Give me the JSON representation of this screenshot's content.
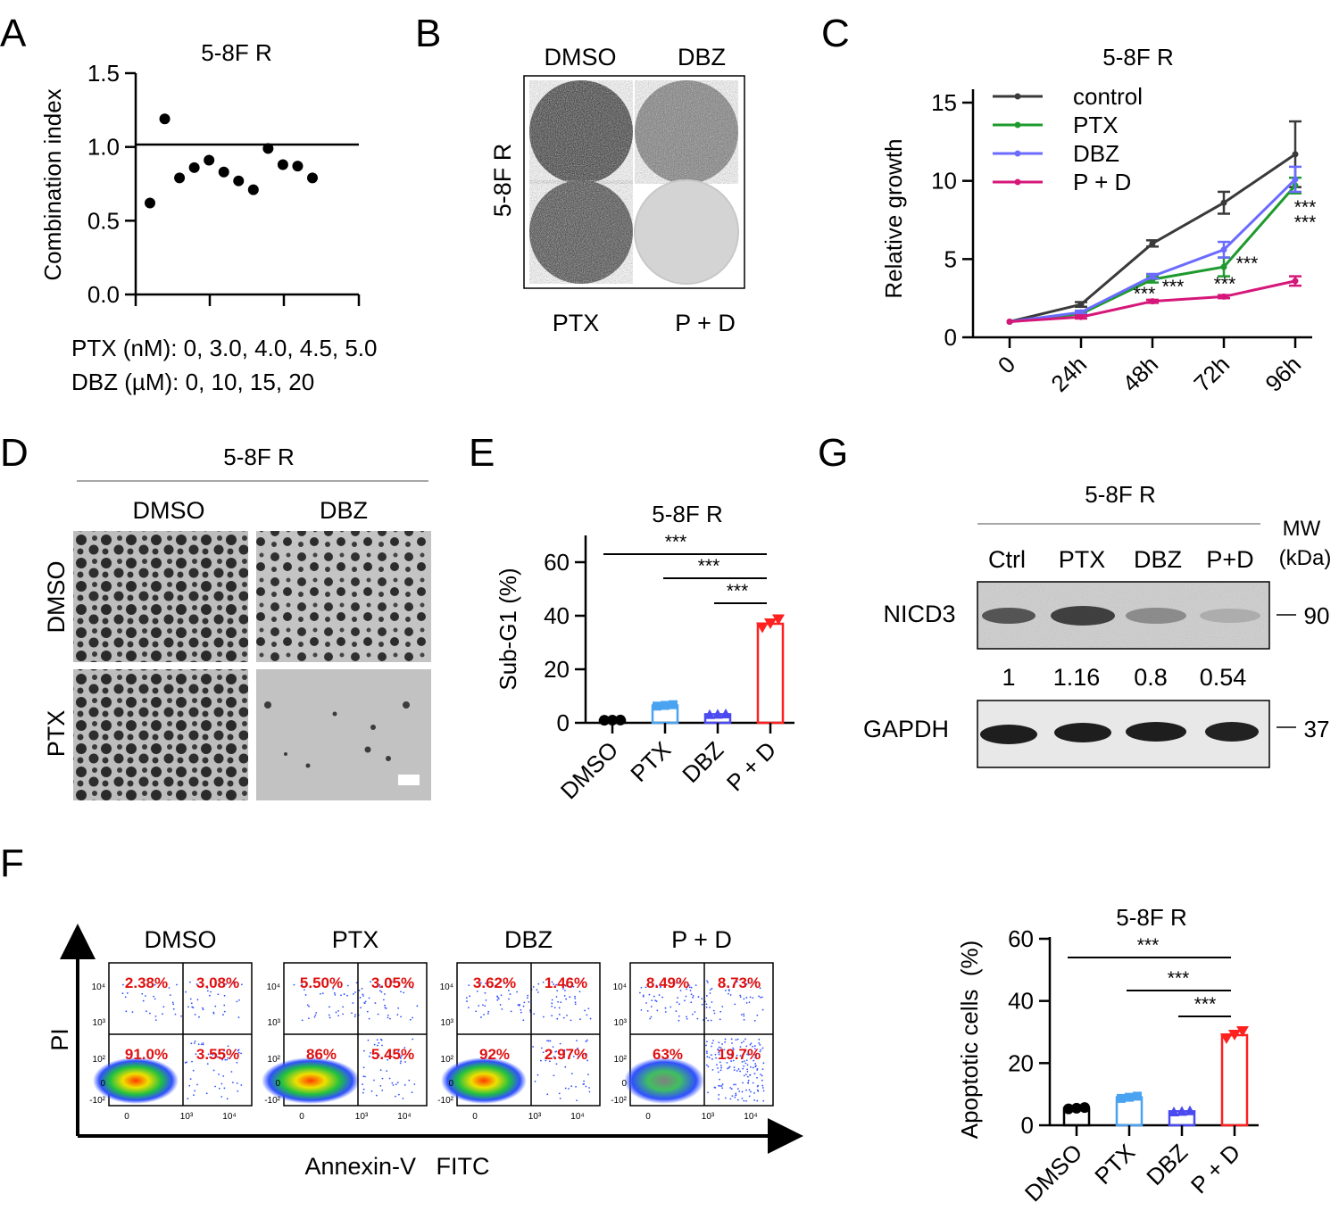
{
  "panels": {
    "a": {
      "letter": "A",
      "title": "5-8F R",
      "ylabel": "Combination index",
      "note_ptx": "PTX (nM): 0, 3.0, 4.0, 4.5, 5.0",
      "note_dbz": "DBZ (µM): 0, 10, 15, 20"
    },
    "b": {
      "letter": "B",
      "col1": "DMSO",
      "col2": "DBZ",
      "row_label": "5-8F R",
      "bottom1": "PTX",
      "bottom2": "P + D"
    },
    "c": {
      "letter": "C",
      "title": "5-8F R",
      "ylabel": "Relative growth"
    },
    "d": {
      "letter": "D",
      "title": "5-8F R",
      "col1": "DMSO",
      "col2": "DBZ",
      "row1": "DMSO",
      "row2": "PTX"
    },
    "e": {
      "letter": "E",
      "title": "5-8F R",
      "ylabel": "Sub-G1 (%)"
    },
    "f": {
      "letter": "F",
      "xaxis": "Annexin-V   FITC",
      "yaxis": "PI",
      "plots": [
        {
          "title": "DMSO",
          "q": [
            "2.38%",
            "3.08%",
            "91.0%",
            "3.55%"
          ]
        },
        {
          "title": "PTX",
          "q": [
            "5.50%",
            "3.05%",
            "86%",
            "5.45%"
          ]
        },
        {
          "title": "DBZ",
          "q": [
            "3.62%",
            "1.46%",
            "92%",
            "2.97%"
          ]
        },
        {
          "title": "P + D",
          "q": [
            "8.49%",
            "8.73%",
            "63%",
            "19.7%"
          ]
        }
      ],
      "axis_ticks": {
        "y": [
          "10⁴",
          "10³",
          "10²",
          "0",
          "-10²"
        ],
        "x": [
          "0",
          "10³",
          "10⁴"
        ]
      },
      "bar_title": "5-8F R",
      "bar_ylabel": "Apoptotic cells  (%)"
    },
    "g": {
      "letter": "G",
      "title": "5-8F R",
      "mw_label": "MW",
      "kda_label": "(kDa)",
      "lanes": [
        "Ctrl",
        "PTX",
        "DBZ",
        "P+D"
      ],
      "band1": "NICD3",
      "band2": "GAPDH",
      "mw1": "90",
      "mw2": "37",
      "quant": [
        "1",
        "1.16",
        "0.8",
        "0.54"
      ]
    }
  },
  "colors": {
    "control": "#3a3a3a",
    "ptx": "#1e9a2e",
    "dbz": "#6b6bff",
    "pd": "#d6177a",
    "bar_dmso": "#000000",
    "bar_ptx": "#4aa3f0",
    "bar_dbz": "#4a4af0",
    "bar_pd": "#ff2020",
    "quant_text": "#e01010"
  },
  "chart_data": [
    {
      "id": "A",
      "type": "scatter",
      "title": "5-8F R",
      "ylabel": "Combination index",
      "xlabel": "",
      "ylim": [
        0,
        1.5
      ],
      "yticks": [
        "0.0",
        "0.5",
        "1.0",
        "1.5"
      ],
      "reference_line": 1.0,
      "values": [
        0.62,
        1.19,
        0.79,
        0.86,
        0.91,
        0.83,
        0.77,
        0.71,
        0.99,
        0.88,
        0.87,
        0.79
      ]
    },
    {
      "id": "C",
      "type": "line",
      "title": "5-8F R",
      "ylabel": "Relative growth",
      "xlabel": "",
      "categories": [
        "0",
        "24h",
        "48h",
        "72h",
        "96h"
      ],
      "ylim": [
        0,
        15
      ],
      "yticks": [
        "0",
        "5",
        "10",
        "15"
      ],
      "series": [
        {
          "name": "control",
          "values": [
            1.0,
            2.1,
            6.0,
            8.6,
            11.7
          ],
          "err": [
            0,
            0.15,
            0.2,
            0.7,
            2.1
          ]
        },
        {
          "name": "PTX",
          "values": [
            1.0,
            1.5,
            3.7,
            4.5,
            9.7
          ],
          "err": [
            0,
            0.1,
            0.2,
            0.6,
            0.5
          ]
        },
        {
          "name": "DBZ",
          "values": [
            1.0,
            1.6,
            3.9,
            5.6,
            10.1
          ],
          "err": [
            0,
            0.1,
            0.15,
            0.5,
            0.8
          ]
        },
        {
          "name": "P + D",
          "values": [
            1.0,
            1.3,
            2.3,
            2.6,
            3.6
          ],
          "err": [
            0,
            0.1,
            0.1,
            0.1,
            0.3
          ]
        }
      ],
      "annotations": [
        "***",
        "***",
        "***",
        "***",
        "***",
        "***"
      ]
    },
    {
      "id": "E",
      "type": "bar",
      "title": "5-8F R",
      "ylabel": "Sub-G1 (%)",
      "xlabel": "",
      "categories": [
        "DMSO",
        "PTX",
        "DBZ",
        "P + D"
      ],
      "values": [
        1.0,
        6.5,
        3.2,
        37
      ],
      "ylim": [
        0,
        70
      ],
      "yticks": [
        "0",
        "20",
        "40",
        "60"
      ],
      "points": [
        [
          1,
          1,
          1
        ],
        [
          6,
          7,
          6.5
        ],
        [
          3,
          3.5,
          3
        ]
      ],
      "points_pd": [
        39,
        36,
        37
      ],
      "significance": [
        "***",
        "***",
        "***"
      ]
    },
    {
      "id": "F",
      "type": "bar",
      "title": "5-8F R",
      "ylabel": "Apoptotic cells  (%)",
      "xlabel": "",
      "categories": [
        "DMSO",
        "PTX",
        "DBZ",
        "P + D"
      ],
      "values": [
        5.5,
        9.0,
        4.5,
        29
      ],
      "ylim": [
        0,
        60
      ],
      "yticks": [
        "0",
        "20",
        "40",
        "60"
      ],
      "significance": [
        "***",
        "***",
        "***"
      ]
    }
  ]
}
